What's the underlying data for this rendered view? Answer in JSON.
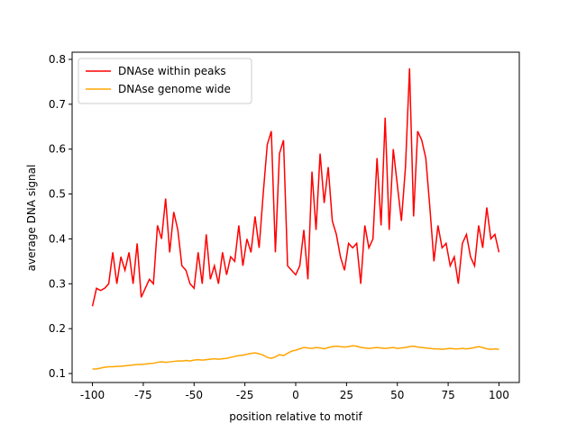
{
  "chart_data": {
    "type": "line",
    "xlabel": "position relative to motif",
    "ylabel": "average DNA signal",
    "x": [
      -100,
      -98,
      -96,
      -94,
      -92,
      -90,
      -88,
      -86,
      -84,
      -82,
      -80,
      -78,
      -76,
      -74,
      -72,
      -70,
      -68,
      -66,
      -64,
      -62,
      -60,
      -58,
      -56,
      -54,
      -52,
      -50,
      -48,
      -46,
      -44,
      -42,
      -40,
      -38,
      -36,
      -34,
      -32,
      -30,
      -28,
      -26,
      -24,
      -22,
      -20,
      -18,
      -16,
      -14,
      -12,
      -10,
      -8,
      -6,
      -4,
      -2,
      0,
      2,
      4,
      6,
      8,
      10,
      12,
      14,
      16,
      18,
      20,
      22,
      24,
      26,
      28,
      30,
      32,
      34,
      36,
      38,
      40,
      42,
      44,
      46,
      48,
      50,
      52,
      54,
      56,
      58,
      60,
      62,
      64,
      66,
      68,
      70,
      72,
      74,
      76,
      78,
      80,
      82,
      84,
      86,
      88,
      90,
      92,
      94,
      96,
      98,
      100
    ],
    "series": [
      {
        "name": "DNAse within peaks",
        "color": "red",
        "values": [
          0.25,
          0.29,
          0.285,
          0.29,
          0.3,
          0.37,
          0.3,
          0.36,
          0.33,
          0.37,
          0.3,
          0.39,
          0.27,
          0.29,
          0.31,
          0.3,
          0.43,
          0.4,
          0.49,
          0.37,
          0.46,
          0.42,
          0.34,
          0.33,
          0.3,
          0.29,
          0.37,
          0.3,
          0.41,
          0.31,
          0.34,
          0.3,
          0.37,
          0.32,
          0.36,
          0.35,
          0.43,
          0.34,
          0.4,
          0.37,
          0.45,
          0.38,
          0.5,
          0.61,
          0.64,
          0.37,
          0.59,
          0.62,
          0.34,
          0.33,
          0.32,
          0.34,
          0.42,
          0.31,
          0.55,
          0.42,
          0.59,
          0.48,
          0.56,
          0.44,
          0.41,
          0.36,
          0.33,
          0.39,
          0.38,
          0.39,
          0.3,
          0.43,
          0.38,
          0.4,
          0.58,
          0.43,
          0.67,
          0.42,
          0.6,
          0.52,
          0.44,
          0.56,
          0.78,
          0.45,
          0.64,
          0.62,
          0.58,
          0.47,
          0.35,
          0.43,
          0.38,
          0.39,
          0.34,
          0.36,
          0.3,
          0.39,
          0.41,
          0.36,
          0.34,
          0.43,
          0.38,
          0.47,
          0.4,
          0.41,
          0.37
        ]
      },
      {
        "name": "DNAse genome wide",
        "color": "orange",
        "values": [
          0.11,
          0.11,
          0.112,
          0.114,
          0.115,
          0.115,
          0.116,
          0.116,
          0.117,
          0.118,
          0.119,
          0.12,
          0.12,
          0.121,
          0.122,
          0.123,
          0.125,
          0.126,
          0.125,
          0.126,
          0.127,
          0.128,
          0.128,
          0.129,
          0.128,
          0.13,
          0.131,
          0.13,
          0.131,
          0.132,
          0.133,
          0.132,
          0.133,
          0.134,
          0.136,
          0.138,
          0.14,
          0.141,
          0.143,
          0.145,
          0.146,
          0.144,
          0.141,
          0.136,
          0.134,
          0.137,
          0.142,
          0.14,
          0.145,
          0.15,
          0.152,
          0.155,
          0.158,
          0.157,
          0.156,
          0.158,
          0.157,
          0.155,
          0.158,
          0.16,
          0.161,
          0.16,
          0.159,
          0.16,
          0.162,
          0.161,
          0.158,
          0.157,
          0.156,
          0.157,
          0.158,
          0.157,
          0.156,
          0.157,
          0.158,
          0.156,
          0.157,
          0.158,
          0.16,
          0.161,
          0.159,
          0.158,
          0.157,
          0.156,
          0.155,
          0.155,
          0.154,
          0.155,
          0.156,
          0.155,
          0.155,
          0.156,
          0.155,
          0.156,
          0.158,
          0.16,
          0.158,
          0.155,
          0.154,
          0.155,
          0.154
        ]
      }
    ],
    "xlim": [
      -110,
      110
    ],
    "ylim": [
      0.08,
      0.816
    ],
    "xticks": [
      -100,
      -75,
      -50,
      -25,
      0,
      25,
      50,
      75,
      100
    ],
    "yticks": [
      0.1,
      0.2,
      0.3,
      0.4,
      0.5,
      0.6,
      0.7,
      0.8
    ],
    "legend": "upper left"
  }
}
